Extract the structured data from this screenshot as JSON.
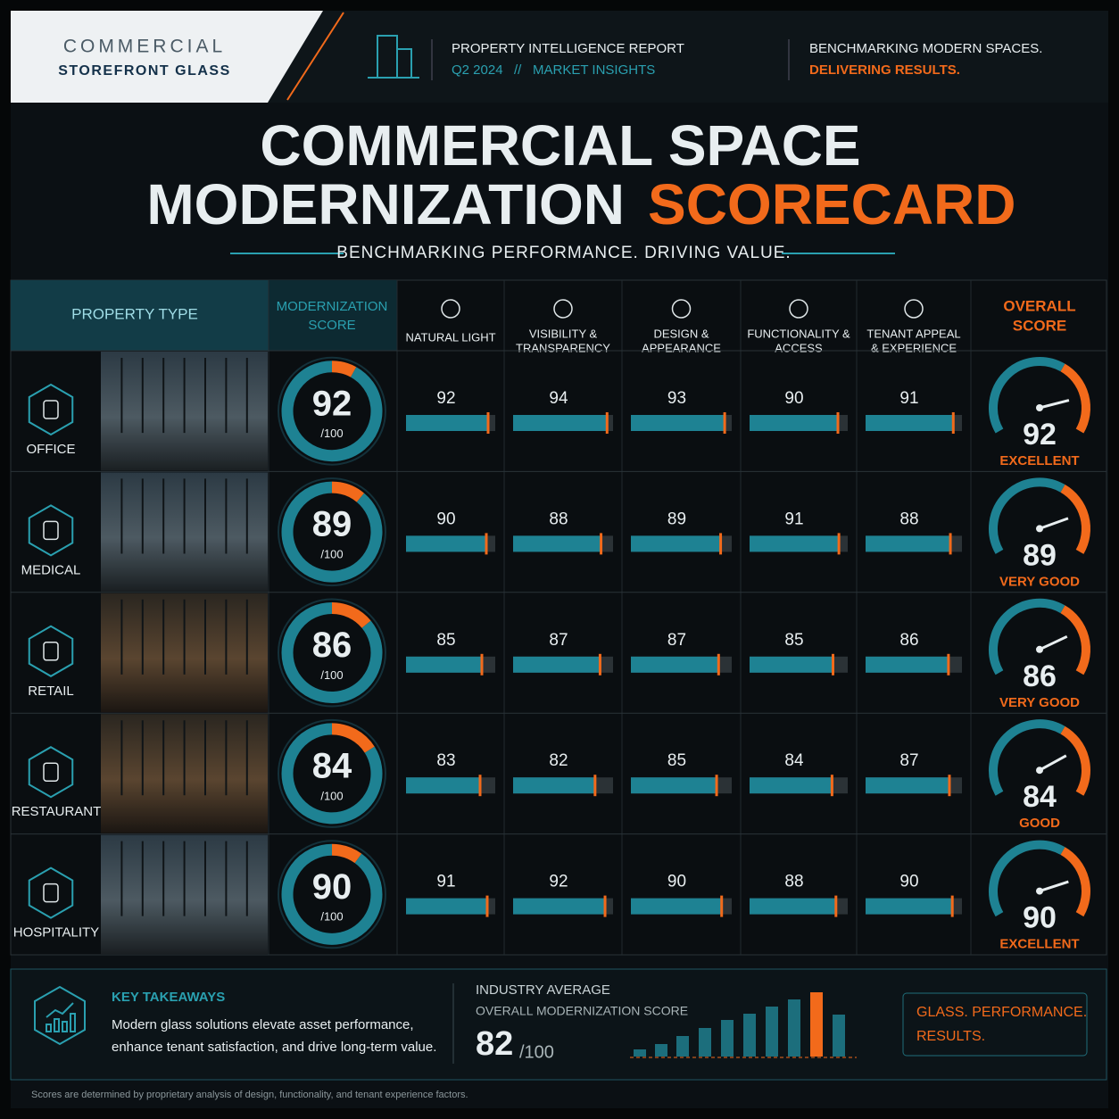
{
  "header": {
    "brand_line1": "COMMERCIAL",
    "brand_line2": "STOREFRONT GLASS",
    "report_title": "PROPERTY INTELLIGENCE REPORT",
    "period": "Q2 2024",
    "separator": "//",
    "insights": "MARKET INSIGHTS",
    "tagline1": "BENCHMARKING MODERN SPACES.",
    "tagline2": "DELIVERING RESULTS."
  },
  "title": {
    "line1": "COMMERCIAL SPACE",
    "line2_white": "MODERNIZATION",
    "line2_orange": "SCORECARD",
    "subtitle": "BENCHMARKING PERFORMANCE. DRIVING VALUE."
  },
  "table": {
    "property_type_header": "PROPERTY TYPE",
    "modernization_header": [
      "MODERNIZATION",
      "SCORE"
    ],
    "metric_headers": [
      [
        "NATURAL LIGHT"
      ],
      [
        "VISIBILITY &",
        "TRANSPARENCY"
      ],
      [
        "DESIGN &",
        "APPEARANCE"
      ],
      [
        "FUNCTIONALITY &",
        "ACCESS"
      ],
      [
        "TENANT APPEAL",
        "& EXPERIENCE"
      ]
    ],
    "overall_header": [
      "OVERALL",
      "SCORE"
    ],
    "score_suffix": "/100",
    "max_score": 100,
    "rows": [
      {
        "name": "OFFICE",
        "score": 92,
        "metrics": [
          92,
          94,
          93,
          90,
          91
        ],
        "overall": 92,
        "rating": "EXCELLENT"
      },
      {
        "name": "MEDICAL",
        "score": 89,
        "metrics": [
          90,
          88,
          89,
          91,
          88
        ],
        "overall": 89,
        "rating": "VERY GOOD"
      },
      {
        "name": "RETAIL",
        "score": 86,
        "metrics": [
          85,
          87,
          87,
          85,
          86
        ],
        "overall": 86,
        "rating": "VERY GOOD"
      },
      {
        "name": "RESTAURANT",
        "score": 84,
        "metrics": [
          83,
          82,
          85,
          84,
          87
        ],
        "overall": 84,
        "rating": "GOOD"
      },
      {
        "name": "HOSPITALITY",
        "score": 90,
        "metrics": [
          91,
          92,
          90,
          88,
          90
        ],
        "overall": 90,
        "rating": "EXCELLENT"
      }
    ]
  },
  "footer": {
    "takeaways_title": "KEY TAKEAWAYS",
    "takeaways_line1": "Modern glass solutions elevate asset performance,",
    "takeaways_line2": "enhance tenant satisfaction, and drive long-term value.",
    "industry_label": "INDUSTRY AVERAGE",
    "industry_sub": "OVERALL MODERNIZATION SCORE",
    "industry_value": 82,
    "industry_suffix": "/100",
    "callout_line1": "GLASS. PERFORMANCE.",
    "callout_line2": "RESULTS.",
    "footnote": "Scores are determined by proprietary analysis of design, functionality, and tenant experience factors."
  }
}
